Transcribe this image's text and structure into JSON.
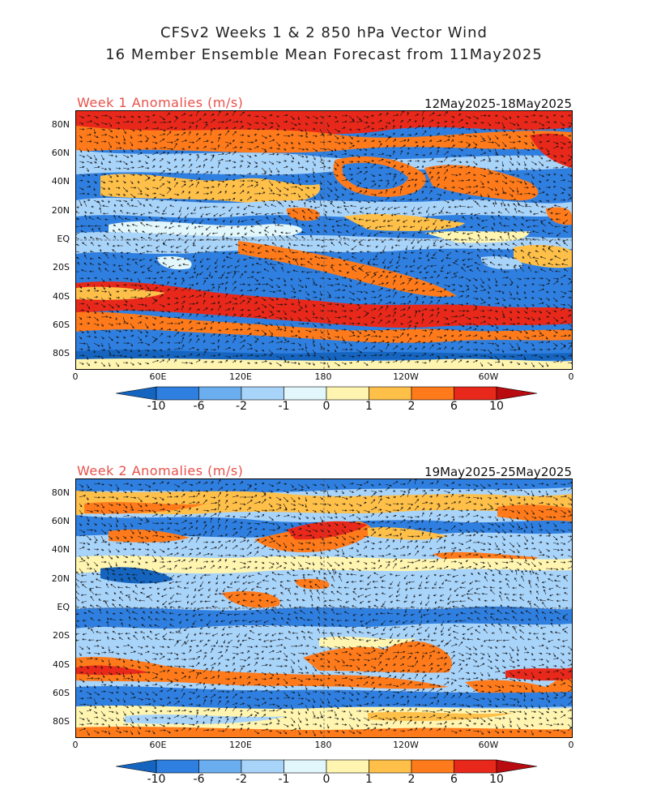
{
  "title": {
    "line1": "CFSv2 Weeks 1 & 2 850 hPa Vector Wind",
    "line2": "16 Member Ensemble Mean Forecast from 11May2025"
  },
  "panels": [
    {
      "label": "Week 1 Anomalies (m/s)",
      "dates": "12May2025-18May2025"
    },
    {
      "label": "Week 2 Anomalies (m/s)",
      "dates": "19May2025-25May2025"
    }
  ],
  "lat_labels": [
    "80N",
    "60N",
    "40N",
    "20N",
    "EQ",
    "20S",
    "40S",
    "60S",
    "80S"
  ],
  "lon_labels": [
    "0",
    "60E",
    "120E",
    "180",
    "120W",
    "60W",
    "0"
  ],
  "colorbar": {
    "labels": [
      "-10",
      "-6",
      "-2",
      "-1",
      "0",
      "1",
      "2",
      "6",
      "10"
    ],
    "colors": [
      "#1565c0",
      "#2f7fe0",
      "#6aaef0",
      "#a9d4fa",
      "#e2f7fb",
      "#fff5b0",
      "#ffc04a",
      "#ff7a1a",
      "#e8281a",
      "#b80c10"
    ]
  }
}
